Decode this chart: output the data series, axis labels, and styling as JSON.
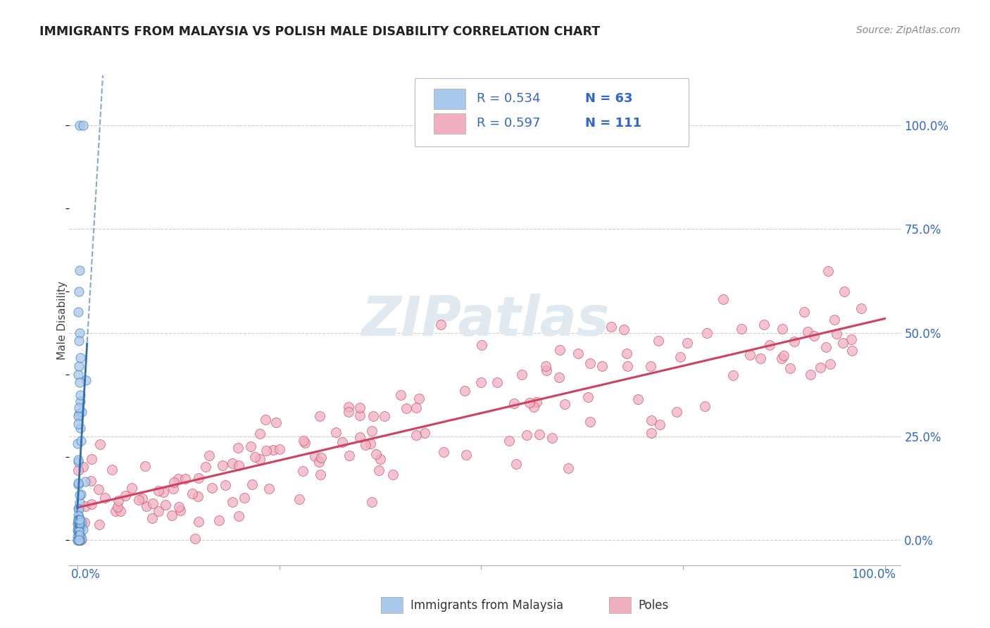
{
  "title": "IMMIGRANTS FROM MALAYSIA VS POLISH MALE DISABILITY CORRELATION CHART",
  "source": "Source: ZipAtlas.com",
  "ylabel": "Male Disability",
  "legend_R1": "R = 0.534",
  "legend_N1": "N = 63",
  "legend_R2": "R = 0.597",
  "legend_N2": "N = 111",
  "color_blue": "#A8C8EC",
  "color_blue_dark": "#3070B0",
  "color_pink": "#F0B0C0",
  "color_pink_dark": "#D04060",
  "color_legend_text": "#3366CC",
  "color_legend_N": "#222222",
  "background_color": "#FFFFFF",
  "grid_color": "#CCCCCC",
  "watermark_color": "#E0E8F0",
  "y_ticks": [
    0.0,
    0.25,
    0.5,
    0.75,
    1.0
  ],
  "y_tick_labels": [
    "0.0%",
    "25.0%",
    "50.0%",
    "75.0%",
    "100.0%"
  ]
}
